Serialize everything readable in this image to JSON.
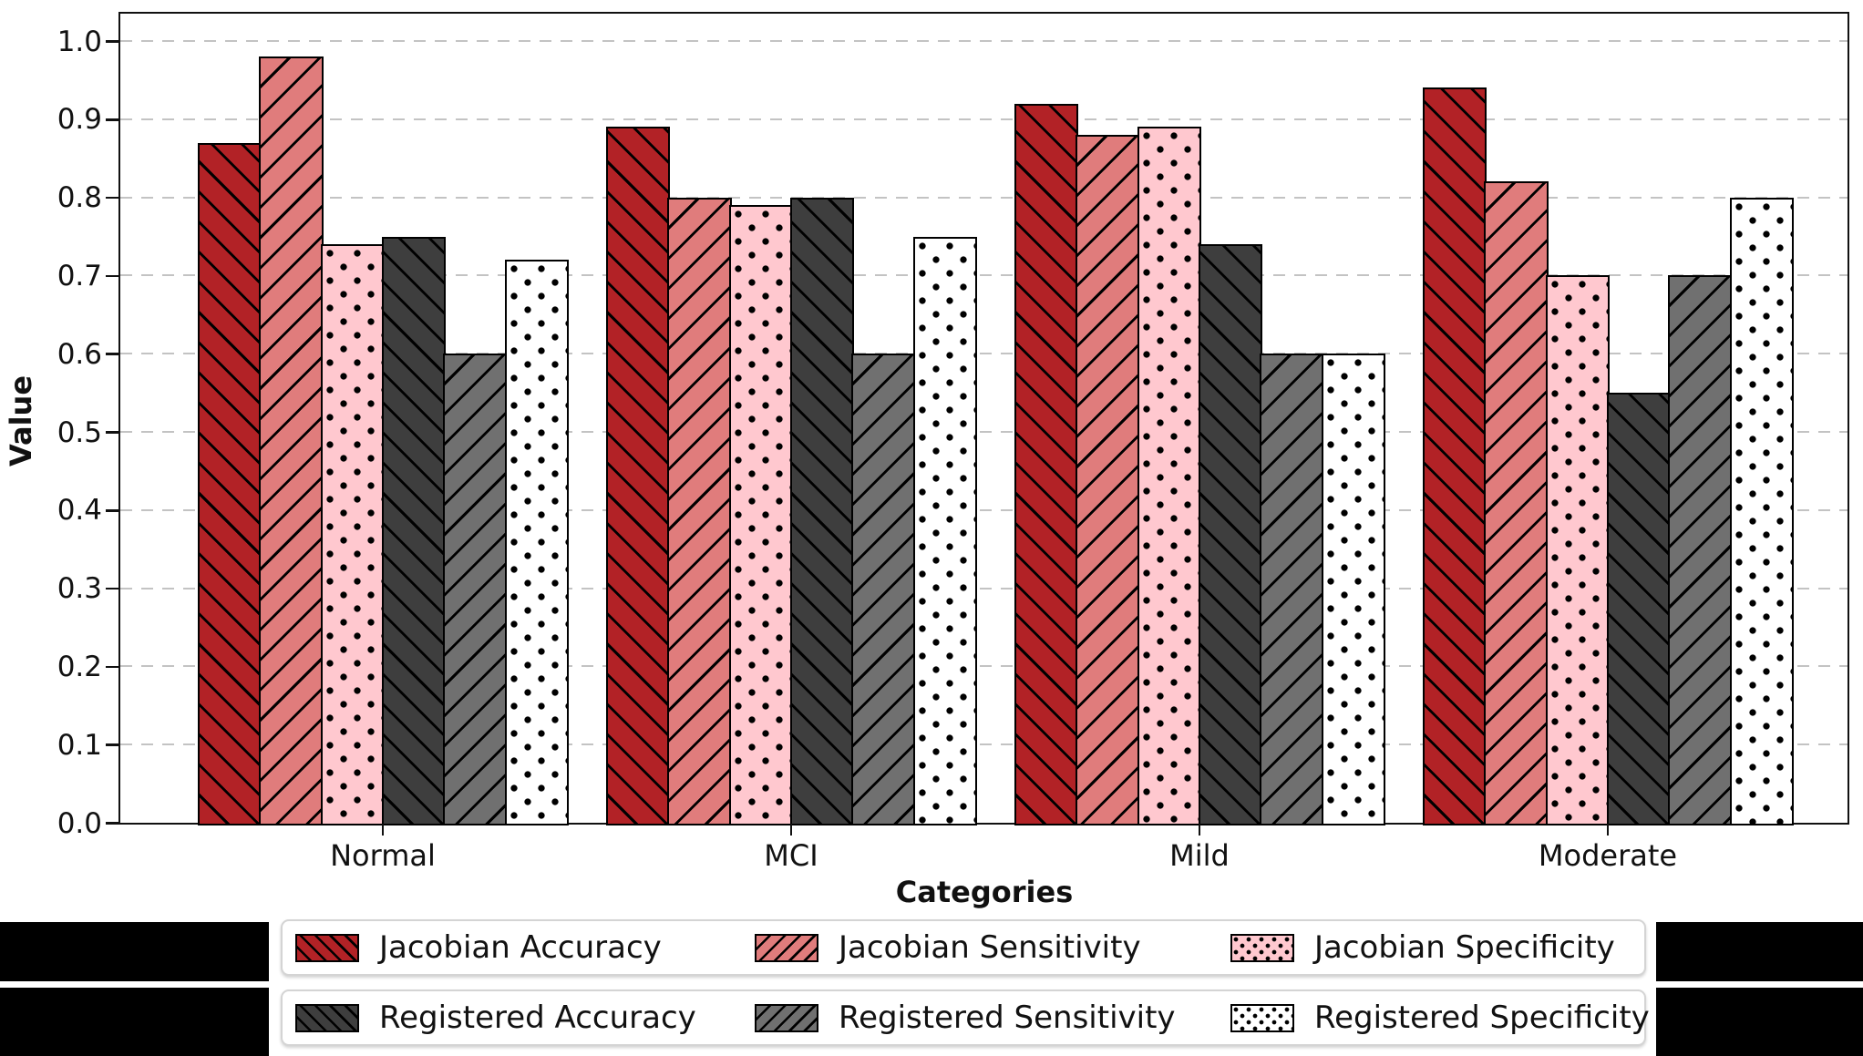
{
  "axes": {
    "ylabel": "Value",
    "xlabel": "Categories",
    "yticks": [
      "0.0",
      "0.1",
      "0.2",
      "0.3",
      "0.4",
      "0.5",
      "0.6",
      "0.7",
      "0.8",
      "0.9",
      "1.0"
    ],
    "grid_color": "#c3c3c3",
    "spine_color": "#111111"
  },
  "chart_data": {
    "type": "bar",
    "title": "",
    "xlabel": "Categories",
    "ylabel": "Value",
    "categories": [
      "Normal",
      "MCI",
      "Mild",
      "Moderate"
    ],
    "series": [
      {
        "name": "Jacobian Accuracy",
        "color": "#b22226",
        "hatch": "/",
        "values": [
          0.87,
          0.89,
          0.92,
          0.94
        ]
      },
      {
        "name": "Jacobian Sensitivity",
        "color": "#e07c7c",
        "hatch": "\\",
        "values": [
          0.98,
          0.8,
          0.88,
          0.82
        ]
      },
      {
        "name": "Jacobian Specificity",
        "color": "#ffc8cf",
        "hatch": ".",
        "values": [
          0.74,
          0.79,
          0.89,
          0.7
        ]
      },
      {
        "name": "Registered Accuracy",
        "color": "#3e3e3e",
        "hatch": "/",
        "values": [
          0.75,
          0.8,
          0.74,
          0.55
        ]
      },
      {
        "name": "Registered Sensitivity",
        "color": "#707070",
        "hatch": "\\",
        "values": [
          0.6,
          0.6,
          0.6,
          0.7
        ]
      },
      {
        "name": "Registered Specificity",
        "color": "#ffffff",
        "hatch": ".",
        "values": [
          0.72,
          0.75,
          0.6,
          0.8
        ]
      }
    ],
    "ylim": [
      0.0,
      1.035
    ],
    "grid": "horizontal-dashed",
    "legend_position": "below, two rows",
    "legend_rows": [
      [
        "Jacobian Accuracy",
        "Jacobian Sensitivity",
        "Jacobian Specificity"
      ],
      [
        "Registered Accuracy",
        "Registered Sensitivity",
        "Registered Specificity"
      ]
    ]
  },
  "decorations": {
    "side_block_color": "#000000"
  }
}
